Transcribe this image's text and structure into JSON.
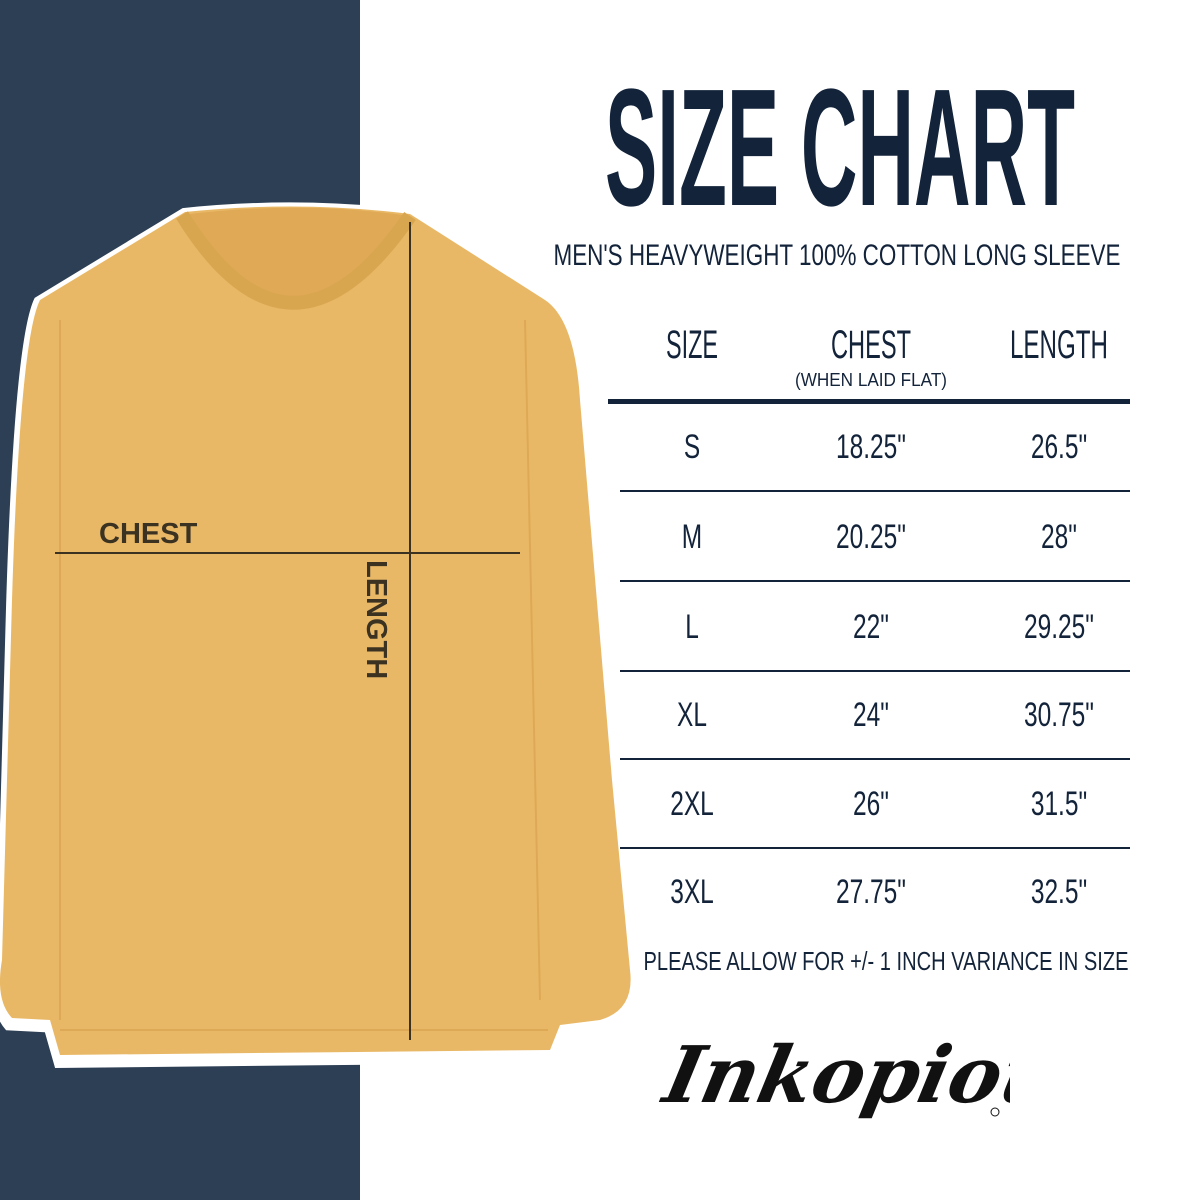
{
  "title": "SIZE CHART",
  "subtitle": "MEN'S HEAVYWEIGHT 100% COTTON LONG SLEEVE",
  "shirt": {
    "chest_label": "CHEST",
    "length_label": "LENGTH",
    "color": "#e9b866"
  },
  "colors": {
    "panel": "#2c3f54",
    "text": "#13233a"
  },
  "table": {
    "headers": {
      "size": "SIZE",
      "chest": "CHEST",
      "chest_note": "(WHEN LAID FLAT)",
      "length": "LENGTH"
    },
    "rows": [
      {
        "size": "S",
        "chest": "18.25\"",
        "length": "26.5\""
      },
      {
        "size": "M",
        "chest": "20.25\"",
        "length": "28\""
      },
      {
        "size": "L",
        "chest": "22\"",
        "length": "29.25\""
      },
      {
        "size": "XL",
        "chest": "24\"",
        "length": "30.75\""
      },
      {
        "size": "2XL",
        "chest": "26\"",
        "length": "31.5\""
      },
      {
        "size": "3XL",
        "chest": "27.75\"",
        "length": "32.5\""
      }
    ]
  },
  "footer": "PLEASE ALLOW FOR +/- 1 INCH VARIANCE IN SIZE",
  "brand": "Inkopious"
}
